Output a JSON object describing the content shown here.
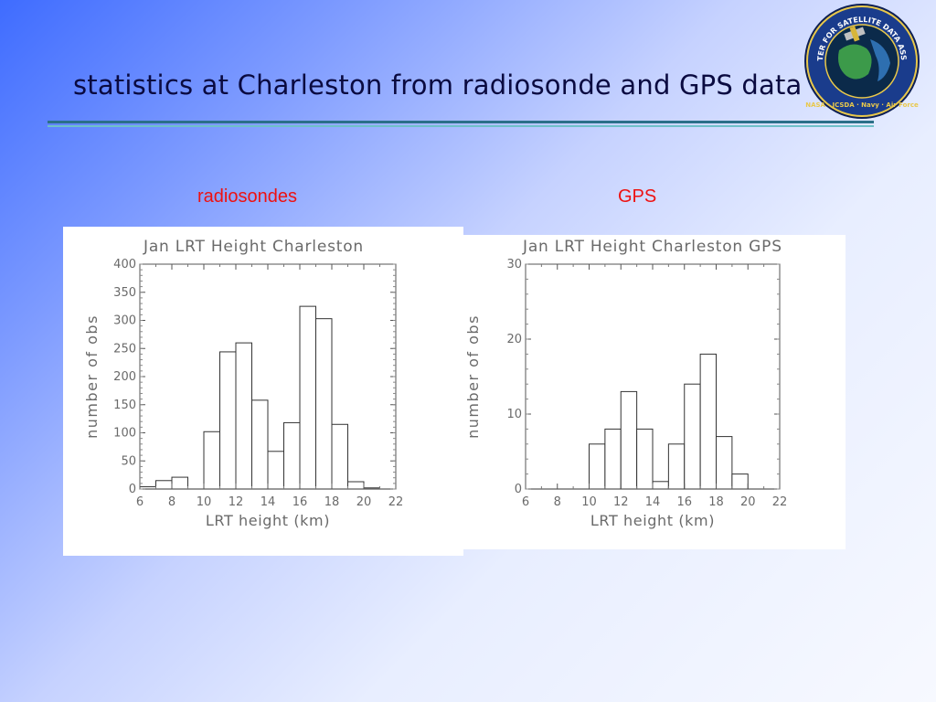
{
  "slide": {
    "title": "statistics at Charleston from radiosonde and GPS data",
    "label_left": "radiosondes",
    "label_right": "GPS",
    "colors": {
      "label": "#ee1111",
      "title": "#0a0a40",
      "rule": "#2b6f88"
    }
  },
  "logo": {
    "ring_text": "JOINT CENTER FOR SATELLITE DATA ASSIMILATION",
    "bottom_text": "NASA · JCSDA · Navy · Air Force",
    "icon": "globe-satellite-seal-icon"
  },
  "chart_data": [
    {
      "type": "bar",
      "title": "Jan LRT Height Charleston",
      "xlabel": "LRT height (km)",
      "ylabel": "number of obs",
      "xlim": [
        6,
        22
      ],
      "ylim": [
        0,
        400
      ],
      "xticks": [
        6,
        8,
        10,
        12,
        14,
        16,
        18,
        20,
        22
      ],
      "yticks": [
        0,
        50,
        100,
        150,
        200,
        250,
        300,
        350,
        400
      ],
      "bin_width": 1,
      "bins": [
        6,
        7,
        8,
        9,
        10,
        11,
        12,
        13,
        14,
        15,
        16,
        17,
        18,
        19,
        20
      ],
      "values": [
        4,
        15,
        21,
        0,
        102,
        244,
        260,
        158,
        67,
        118,
        325,
        303,
        115,
        13,
        2
      ],
      "grid": false
    },
    {
      "type": "bar",
      "title": "Jan LRT Height Charleston GPS",
      "xlabel": "LRT height (km)",
      "ylabel": "number of obs",
      "xlim": [
        6,
        22
      ],
      "ylim": [
        0,
        30
      ],
      "xticks": [
        6,
        8,
        10,
        12,
        14,
        16,
        18,
        20,
        22
      ],
      "yticks": [
        0,
        10,
        20,
        30
      ],
      "bin_width": 1,
      "bins": [
        6,
        7,
        8,
        9,
        10,
        11,
        12,
        13,
        14,
        15,
        16,
        17,
        18,
        19,
        20
      ],
      "values": [
        0,
        0,
        0,
        0,
        6,
        8,
        13,
        8,
        1,
        6,
        14,
        18,
        7,
        2,
        0
      ],
      "grid": false
    }
  ]
}
